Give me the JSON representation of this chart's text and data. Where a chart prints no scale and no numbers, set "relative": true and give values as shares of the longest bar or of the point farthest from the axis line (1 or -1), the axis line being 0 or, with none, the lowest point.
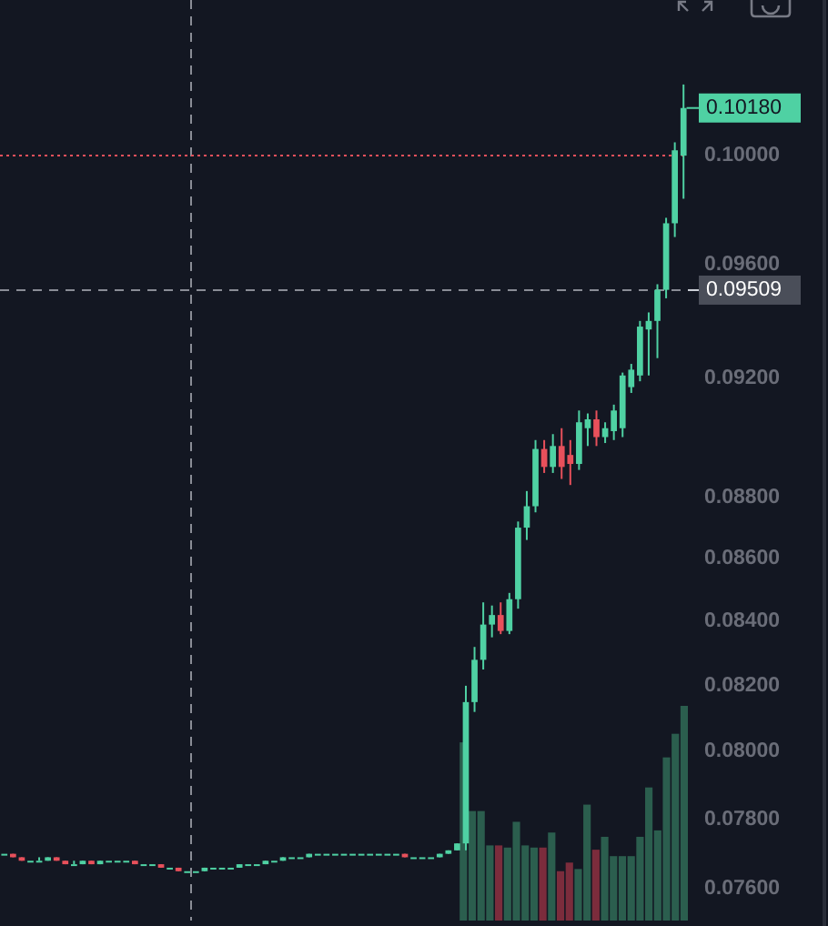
{
  "chart_data": [
    {
      "type": "candlestick",
      "categories": [
        null,
        null,
        null,
        null,
        null,
        null,
        null,
        null,
        null,
        null,
        null,
        null,
        null,
        null,
        null,
        null,
        null,
        null,
        null,
        null,
        null,
        null,
        null,
        null,
        null,
        null,
        null,
        null,
        null,
        null,
        null,
        null,
        null,
        null,
        null,
        null,
        null,
        null,
        null,
        null,
        null,
        null,
        null,
        null,
        null,
        null,
        null,
        null,
        null,
        null,
        null,
        null,
        null,
        null,
        null,
        null,
        null,
        null,
        null,
        null,
        null,
        null,
        null,
        null,
        null,
        null,
        null,
        null,
        null,
        null,
        null,
        null,
        null,
        null,
        null,
        null,
        null,
        null,
        null
      ],
      "ylim": [
        0.0751,
        0.106
      ],
      "log": true,
      "tick_labels": "y",
      "yticks": [
        {
          "value": 0.076,
          "label": "0.07600"
        },
        {
          "value": 0.078,
          "label": "0.07800"
        },
        {
          "value": 0.08,
          "label": "0.08000"
        },
        {
          "value": 0.082,
          "label": "0.08200"
        },
        {
          "value": 0.084,
          "label": "0.08400"
        },
        {
          "value": 0.086,
          "label": "0.08600"
        },
        {
          "value": 0.088,
          "label": "0.08800"
        },
        {
          "value": 0.092,
          "label": "0.09200"
        },
        {
          "value": 0.096,
          "label": "0.09600"
        },
        {
          "value": 0.1,
          "label": "0.10000"
        }
      ],
      "colors": [
        "#4fd1a3",
        "#e8505b",
        "#e8505b",
        "#4fd1a3",
        "#4fd1a3",
        "#4fd1a3",
        "#e8505b",
        "#e8505b",
        "#4fd1a3",
        "#4fd1a3",
        "#e8505b",
        "#4fd1a3",
        "#4fd1a3",
        "#4fd1a3",
        "#4fd1a3",
        "#e8505b",
        "#4fd1a3",
        "#4fd1a3",
        "#e8505b",
        "#4fd1a3",
        "#e8505b",
        "#4fd1a3",
        "#4fd1a3",
        "#4fd1a3",
        "#4fd1a3",
        "#4fd1a3",
        "#4fd1a3",
        "#4fd1a3",
        "#4fd1a3",
        "#4fd1a3",
        "#4fd1a3",
        "#4fd1a3",
        "#4fd1a3",
        "#4fd1a3",
        "#4fd1a3",
        "#4fd1a3",
        "#4fd1a3",
        "#4fd1a3",
        "#4fd1a3",
        "#4fd1a3",
        "#4fd1a3",
        "#4fd1a3",
        "#4fd1a3",
        "#4fd1a3",
        "#4fd1a3",
        "#4fd1a3",
        "#e8505b",
        "#4fd1a3",
        "#4fd1a3",
        "#4fd1a3",
        "#4fd1a3",
        "#4fd1a3",
        "#4fd1a3",
        "#4fd1a3",
        "#4fd1a3",
        "#4fd1a3",
        "#4fd1a3",
        "#e8505b",
        "#4fd1a3",
        "#4fd1a3",
        "#4fd1a3",
        "#4fd1a3",
        "#e8505b",
        "#4fd1a3",
        "#e8505b",
        "#e8505b",
        "#4fd1a3",
        "#4fd1a3",
        "#e8505b",
        "#4fd1a3",
        "#4fd1a3",
        "#4fd1a3",
        "#4fd1a3",
        "#4fd1a3",
        "#4fd1a3",
        "#4fd1a3",
        "#4fd1a3",
        "#4fd1a3",
        "#4fd1a3"
      ],
      "ohlc": [
        [
          0.077,
          0.077,
          0.077,
          0.077
        ],
        [
          0.077,
          0.077,
          0.0769,
          0.0769
        ],
        [
          0.0769,
          0.0769,
          0.0768,
          0.0768
        ],
        [
          0.0768,
          0.0768,
          0.0768,
          0.0768
        ],
        [
          0.0768,
          0.0769,
          0.0768,
          0.0768
        ],
        [
          0.0768,
          0.0769,
          0.0768,
          0.0769
        ],
        [
          0.0769,
          0.0769,
          0.0768,
          0.0768
        ],
        [
          0.0768,
          0.0768,
          0.0767,
          0.0767
        ],
        [
          0.0767,
          0.0768,
          0.0767,
          0.0767
        ],
        [
          0.0767,
          0.0768,
          0.0767,
          0.0768
        ],
        [
          0.0768,
          0.0768,
          0.0767,
          0.0767
        ],
        [
          0.0767,
          0.0768,
          0.0767,
          0.0768
        ],
        [
          0.0768,
          0.0768,
          0.0768,
          0.0768
        ],
        [
          0.0768,
          0.0768,
          0.0768,
          0.0768
        ],
        [
          0.0768,
          0.0768,
          0.0768,
          0.0768
        ],
        [
          0.0768,
          0.0768,
          0.0767,
          0.0767
        ],
        [
          0.0767,
          0.0767,
          0.0767,
          0.0767
        ],
        [
          0.0767,
          0.0767,
          0.0767,
          0.0767
        ],
        [
          0.0767,
          0.0767,
          0.0766,
          0.0766
        ],
        [
          0.0766,
          0.0766,
          0.0766,
          0.0766
        ],
        [
          0.0766,
          0.0766,
          0.0765,
          0.0765
        ],
        [
          0.0765,
          0.0765,
          0.0765,
          0.0765
        ],
        [
          0.0765,
          0.0765,
          0.0765,
          0.0765
        ],
        [
          0.0765,
          0.0766,
          0.0765,
          0.0766
        ],
        [
          0.0766,
          0.0766,
          0.0766,
          0.0766
        ],
        [
          0.0766,
          0.0766,
          0.0766,
          0.0766
        ],
        [
          0.0766,
          0.0766,
          0.0766,
          0.0766
        ],
        [
          0.0766,
          0.0767,
          0.0766,
          0.0767
        ],
        [
          0.0767,
          0.0767,
          0.0767,
          0.0767
        ],
        [
          0.0767,
          0.0767,
          0.0767,
          0.0767
        ],
        [
          0.0767,
          0.0768,
          0.0767,
          0.0768
        ],
        [
          0.0768,
          0.0768,
          0.0768,
          0.0768
        ],
        [
          0.0768,
          0.0769,
          0.0768,
          0.0769
        ],
        [
          0.0769,
          0.0769,
          0.0769,
          0.0769
        ],
        [
          0.0769,
          0.0769,
          0.0769,
          0.0769
        ],
        [
          0.0769,
          0.077,
          0.0769,
          0.077
        ],
        [
          0.077,
          0.077,
          0.077,
          0.077
        ],
        [
          0.077,
          0.077,
          0.077,
          0.077
        ],
        [
          0.077,
          0.077,
          0.077,
          0.077
        ],
        [
          0.077,
          0.077,
          0.077,
          0.077
        ],
        [
          0.077,
          0.077,
          0.077,
          0.077
        ],
        [
          0.077,
          0.077,
          0.077,
          0.077
        ],
        [
          0.077,
          0.077,
          0.077,
          0.077
        ],
        [
          0.077,
          0.077,
          0.077,
          0.077
        ],
        [
          0.077,
          0.077,
          0.077,
          0.077
        ],
        [
          0.077,
          0.077,
          0.077,
          0.077
        ],
        [
          0.077,
          0.077,
          0.0769,
          0.0769
        ],
        [
          0.0769,
          0.0769,
          0.0769,
          0.0769
        ],
        [
          0.0769,
          0.0769,
          0.0769,
          0.0769
        ],
        [
          0.0769,
          0.0769,
          0.0769,
          0.0769
        ],
        [
          0.0769,
          0.077,
          0.0769,
          0.077
        ],
        [
          0.077,
          0.0771,
          0.077,
          0.0771
        ],
        [
          0.0771,
          0.0773,
          0.0771,
          0.0773
        ],
        [
          0.0773,
          0.082,
          0.0771,
          0.0815
        ],
        [
          0.0815,
          0.0832,
          0.0812,
          0.0828
        ],
        [
          0.0828,
          0.0846,
          0.0825,
          0.0839
        ],
        [
          0.0839,
          0.0845,
          0.0835,
          0.0842
        ],
        [
          0.0842,
          0.0846,
          0.0836,
          0.0837
        ],
        [
          0.0837,
          0.0849,
          0.0836,
          0.0847
        ],
        [
          0.0847,
          0.0872,
          0.0844,
          0.087
        ],
        [
          0.087,
          0.0882,
          0.0866,
          0.0877
        ],
        [
          0.0877,
          0.0899,
          0.0875,
          0.0896
        ],
        [
          0.0896,
          0.0899,
          0.0888,
          0.089
        ],
        [
          0.089,
          0.0901,
          0.0888,
          0.0897
        ],
        [
          0.0897,
          0.0903,
          0.0886,
          0.089
        ],
        [
          0.0894,
          0.0899,
          0.0884,
          0.0891
        ],
        [
          0.0891,
          0.0909,
          0.0889,
          0.0905
        ],
        [
          0.0903,
          0.0908,
          0.0897,
          0.0906
        ],
        [
          0.0906,
          0.0909,
          0.0897,
          0.09
        ],
        [
          0.09,
          0.0905,
          0.0898,
          0.0903
        ],
        [
          0.0902,
          0.0911,
          0.0899,
          0.0909
        ],
        [
          0.0903,
          0.0922,
          0.09,
          0.0921
        ],
        [
          0.0917,
          0.0925,
          0.0915,
          0.0923
        ],
        [
          0.0921,
          0.094,
          0.0919,
          0.0938
        ],
        [
          0.0937,
          0.0943,
          0.0921,
          0.094
        ],
        [
          0.094,
          0.0953,
          0.0927,
          0.0951
        ],
        [
          0.0951,
          0.0977,
          0.0948,
          0.0975
        ],
        [
          0.0975,
          0.1005,
          0.097,
          0.1002
        ],
        [
          0.1,
          0.1027,
          0.0984,
          0.1018
        ]
      ],
      "ref_lines": [
        {
          "axis": "y",
          "value": 0.1,
          "color": "#e8505b",
          "line_style": "dotted"
        },
        {
          "axis": "y",
          "value": 0.09509,
          "label": "0.09509",
          "color": "#8a8d96",
          "line_style": "dashed"
        }
      ],
      "annotations": [
        "0.10180"
      ]
    },
    {
      "type": "bar",
      "relative": true,
      "tick_labels": false,
      "categories": [
        null,
        null,
        null,
        null,
        null,
        null,
        null,
        null,
        null,
        null,
        null,
        null,
        null,
        null,
        null,
        null,
        null,
        null,
        null,
        null,
        null,
        null,
        null,
        null,
        null,
        null
      ],
      "values": [
        0.83,
        0.51,
        0.51,
        0.35,
        0.35,
        0.34,
        0.46,
        0.35,
        0.34,
        0.34,
        0.41,
        0.23,
        0.27,
        0.24,
        0.54,
        0.33,
        0.39,
        0.3,
        0.3,
        0.3,
        0.39,
        0.62,
        0.42,
        0.76,
        0.87,
        1
      ],
      "colors": [
        "#2b5e4e",
        "#2b5e4e",
        "#2b5e4e",
        "#2b5e4e",
        "#7b2c3c",
        "#2b5e4e",
        "#2b5e4e",
        "#2b5e4e",
        "#2b5e4e",
        "#7b2c3c",
        "#2b5e4e",
        "#7b2c3c",
        "#7b2c3c",
        "#2b5e4e",
        "#2b5e4e",
        "#7b2c3c",
        "#2b5e4e",
        "#2b5e4e",
        "#2b5e4e",
        "#2b5e4e",
        "#2b5e4e",
        "#2b5e4e",
        "#2b5e4e",
        "#2b5e4e",
        "#2b5e4e",
        "#2b5e4e"
      ]
    }
  ]
}
